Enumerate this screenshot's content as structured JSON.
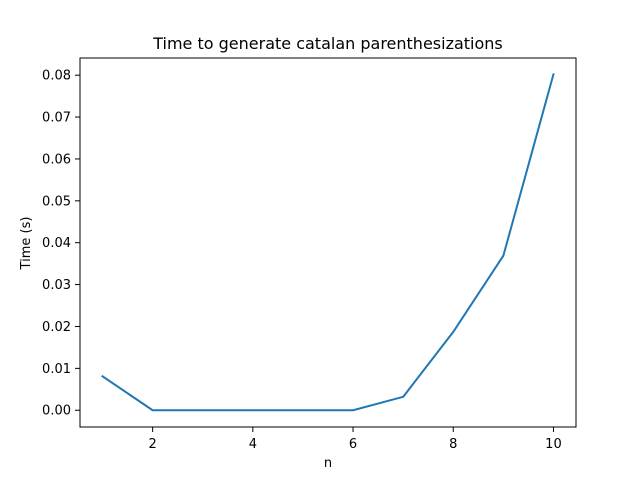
{
  "chart_data": {
    "type": "line",
    "title": "Time to generate catalan parenthesizations",
    "xlabel": "n",
    "ylabel": "Time (s)",
    "xlim": [
      0.55,
      10.45
    ],
    "ylim": [
      -0.004,
      0.0841
    ],
    "xticks": [
      2,
      4,
      6,
      8,
      10
    ],
    "yticks": [
      0.0,
      0.01,
      0.02,
      0.03,
      0.04,
      0.05,
      0.06,
      0.07,
      0.08
    ],
    "ytick_labels": [
      "0.00",
      "0.01",
      "0.02",
      "0.03",
      "0.04",
      "0.05",
      "0.06",
      "0.07",
      "0.08"
    ],
    "grid": false,
    "series": [
      {
        "color": "#1f77b4",
        "x": [
          1,
          2,
          3,
          4,
          5,
          6,
          7,
          8,
          9,
          10
        ],
        "y": [
          0.0081,
          0.0,
          0.0,
          0.0,
          0.0,
          0.0,
          0.0032,
          0.0187,
          0.0369,
          0.0802
        ]
      }
    ]
  }
}
